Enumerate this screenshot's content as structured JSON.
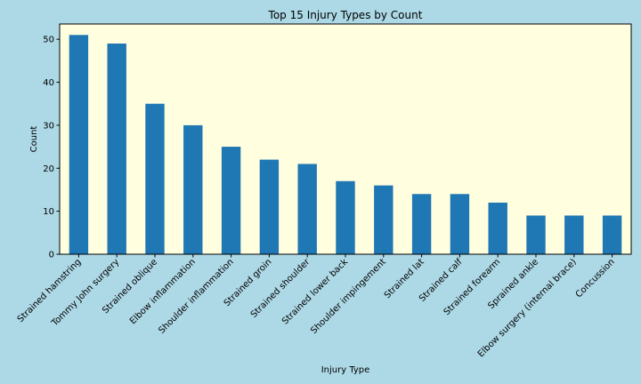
{
  "colors": {
    "figure_background": "#add8e6",
    "plot_background": "#ffffe0",
    "bar": "#1f77b4",
    "axes": "#000000"
  },
  "chart_data": {
    "type": "bar",
    "title": "Top 15 Injury Types by Count",
    "xlabel": "Injury Type",
    "ylabel": "Count",
    "categories": [
      "Strained hamstring",
      "Tommy John surgery",
      "Strained oblique",
      "Elbow inflammation",
      "Shoulder inflammation",
      "Strained groin",
      "Strained shoulder",
      "Strained lower back",
      "Shoulder impingement",
      "Strained lat",
      "Strained calf",
      "Strained forearm",
      "Sprained ankle",
      "Elbow surgery (internal brace)",
      "Concussion"
    ],
    "values": [
      51,
      49,
      35,
      30,
      25,
      22,
      21,
      17,
      16,
      14,
      14,
      12,
      9,
      9,
      9
    ],
    "ylim": [
      0,
      53.55
    ],
    "yticks": [
      0,
      10,
      20,
      30,
      40,
      50
    ],
    "grid": false,
    "legend": "none"
  }
}
